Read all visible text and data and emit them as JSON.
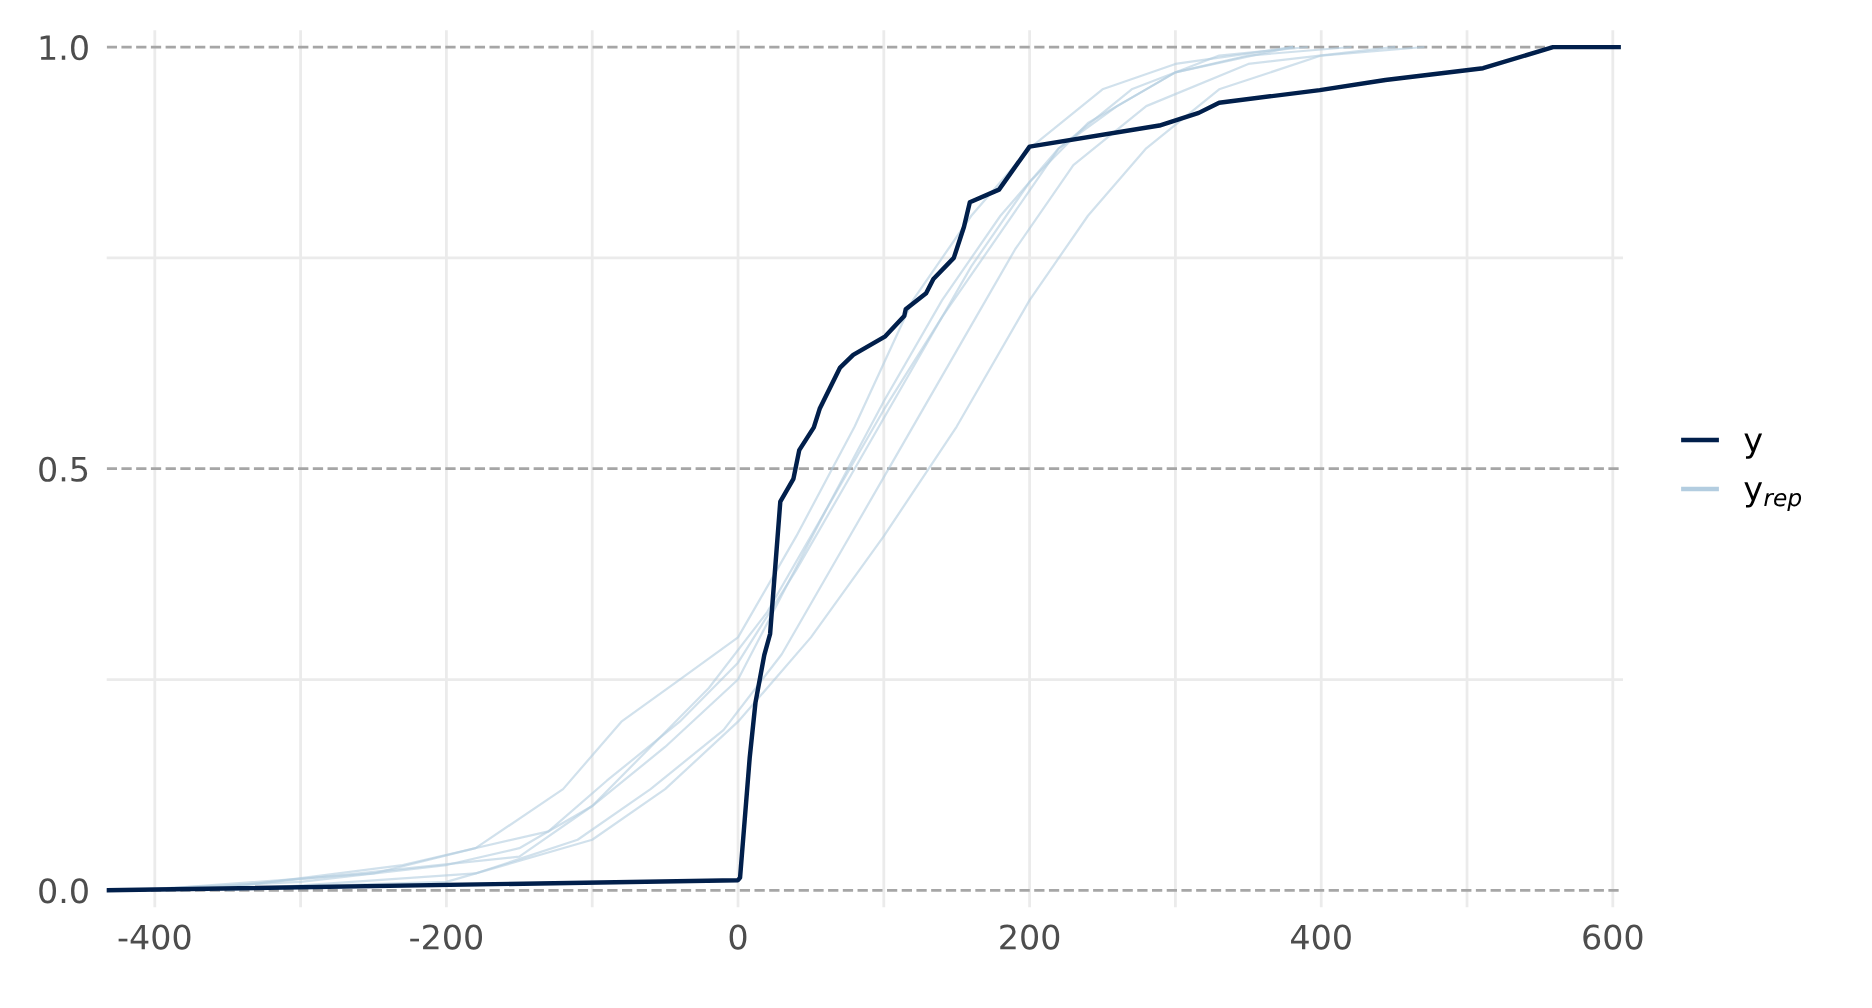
{
  "chart_data": {
    "type": "line",
    "xlim": [
      -433,
      607
    ],
    "ylim": [
      -0.02,
      1.02
    ],
    "xticks": [
      -400,
      {
        "value": -300,
        "label": null
      },
      -200,
      {
        "value": -100,
        "label": null
      },
      0,
      {
        "value": 100,
        "label": null
      },
      200,
      {
        "value": 300,
        "label": null
      },
      400,
      {
        "value": 500,
        "label": null
      },
      600
    ],
    "yticks": [
      {
        "value": 0,
        "label": "0.0"
      },
      {
        "value": 0.25,
        "label": null
      },
      {
        "value": 0.5,
        "label": "0.5"
      },
      {
        "value": 0.75,
        "label": null
      },
      {
        "value": 1,
        "label": "1.0"
      }
    ],
    "grid": true,
    "legend": "right",
    "line_style": "solid",
    "marker": "none",
    "series": [
      {
        "name": "y",
        "color": "#011f4b",
        "x": [
          -433,
          0,
          1.4,
          8,
          12,
          18,
          22,
          29,
          38,
          42,
          52,
          56,
          70,
          79,
          101,
          114,
          115,
          129,
          134,
          148,
          155,
          159,
          179,
          200,
          289,
          316,
          330,
          399,
          444,
          511,
          559,
          604
        ],
        "values": [
          0,
          0.012,
          0.015,
          0.157,
          0.223,
          0.279,
          0.304,
          0.461,
          0.488,
          0.522,
          0.549,
          0.571,
          0.62,
          0.635,
          0.657,
          0.681,
          0.689,
          0.708,
          0.725,
          0.75,
          0.787,
          0.816,
          0.831,
          0.882,
          0.907,
          0.922,
          0.934,
          0.949,
          0.961,
          0.975,
          1,
          1
        ]
      },
      {
        "name": "y$_{rep}$",
        "color": "#b3cde0",
        "x": [
          -425,
          -300,
          -200,
          -150,
          -100,
          -50,
          0,
          30,
          60,
          100,
          140,
          180,
          220,
          260,
          300,
          350,
          420
        ],
        "values": [
          0,
          0.01,
          0.03,
          0.05,
          0.1,
          0.17,
          0.25,
          0.35,
          0.45,
          0.58,
          0.7,
          0.8,
          0.88,
          0.93,
          0.97,
          0.99,
          1
        ]
      },
      {
        "color": "#b3cde0",
        "x": [
          -410,
          -250,
          -180,
          -120,
          -80,
          -40,
          0,
          40,
          80,
          120,
          160,
          200,
          250,
          300,
          380
        ],
        "values": [
          0,
          0.02,
          0.05,
          0.12,
          0.2,
          0.25,
          0.3,
          0.42,
          0.55,
          0.7,
          0.8,
          0.88,
          0.95,
          0.98,
          1
        ]
      },
      {
        "color": "#b3cde0",
        "x": [
          -395,
          -200,
          -100,
          -50,
          0,
          50,
          100,
          150,
          200,
          240,
          280,
          330,
          400,
          470
        ],
        "values": [
          0,
          0.01,
          0.06,
          0.12,
          0.2,
          0.3,
          0.42,
          0.55,
          0.7,
          0.8,
          0.88,
          0.95,
          0.99,
          1
        ]
      },
      {
        "color": "#b3cde0",
        "x": [
          -380,
          -260,
          -150,
          -100,
          -60,
          -20,
          20,
          60,
          100,
          140,
          180,
          220,
          270,
          330,
          390
        ],
        "values": [
          0,
          0.02,
          0.04,
          0.1,
          0.17,
          0.24,
          0.33,
          0.45,
          0.57,
          0.68,
          0.78,
          0.88,
          0.95,
          0.99,
          1
        ]
      },
      {
        "color": "#b3cde0",
        "x": [
          -365,
          -230,
          -130,
          -90,
          -40,
          0,
          40,
          80,
          120,
          160,
          200,
          240,
          300,
          380
        ],
        "values": [
          0,
          0.03,
          0.07,
          0.13,
          0.2,
          0.27,
          0.38,
          0.5,
          0.62,
          0.74,
          0.84,
          0.91,
          0.97,
          1
        ]
      },
      {
        "color": "#b3cde0",
        "x": [
          -350,
          -180,
          -110,
          -60,
          -10,
          30,
          70,
          110,
          150,
          190,
          230,
          280,
          350,
          450
        ],
        "values": [
          0,
          0.02,
          0.06,
          0.12,
          0.19,
          0.28,
          0.4,
          0.52,
          0.64,
          0.76,
          0.86,
          0.93,
          0.98,
          1
        ]
      }
    ]
  }
}
